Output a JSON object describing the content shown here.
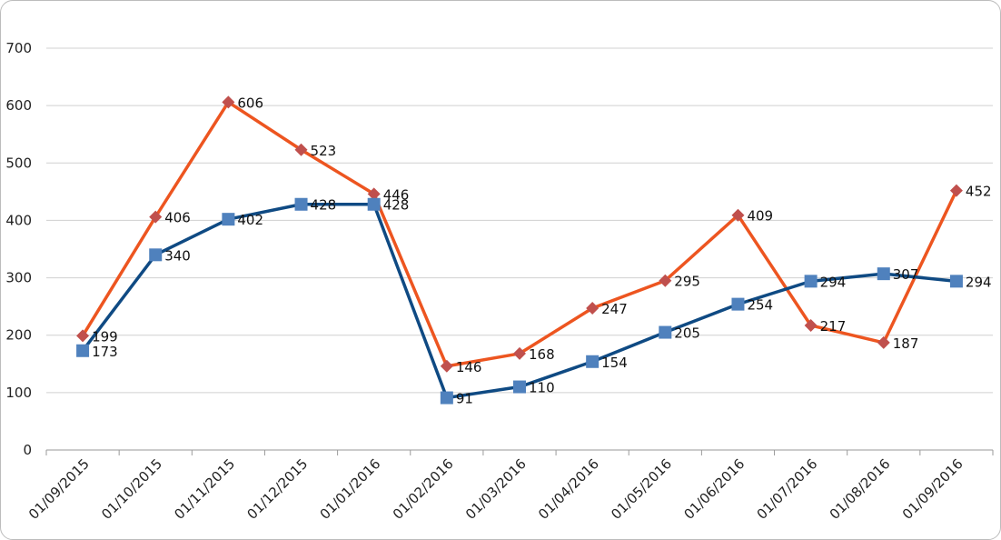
{
  "chart_data": {
    "type": "line",
    "categories": [
      "01/09/2015",
      "01/10/2015",
      "01/11/2015",
      "01/12/2015",
      "01/01/2016",
      "01/02/2016",
      "01/03/2016",
      "01/04/2016",
      "01/05/2016",
      "01/06/2016",
      "01/07/2016",
      "01/08/2016",
      "01/09/2016"
    ],
    "series": [
      {
        "values": [
          199,
          406,
          606,
          523,
          446,
          146,
          168,
          247,
          295,
          409,
          217,
          187,
          452
        ],
        "color": "#ed5520",
        "marker": "diamond",
        "marker_color": "#c0504d"
      },
      {
        "values": [
          173,
          340,
          402,
          428,
          428,
          91,
          110,
          154,
          205,
          254,
          294,
          307,
          294
        ],
        "color": "#0f4a83",
        "marker": "square",
        "marker_color": "#4f81bd"
      }
    ],
    "ylim": [
      0,
      700
    ],
    "yticks": [
      0,
      100,
      200,
      300,
      400,
      500,
      600,
      700
    ],
    "grid": true,
    "legend": "none",
    "data_labels": true
  }
}
